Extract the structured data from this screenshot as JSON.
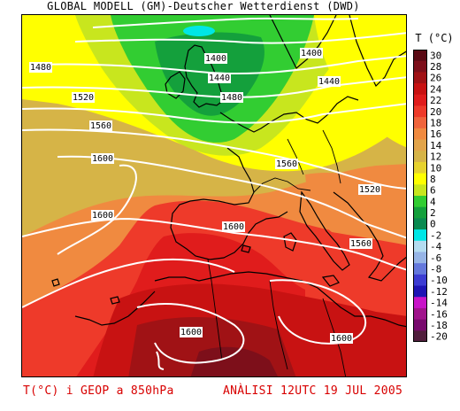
{
  "header": {
    "title": "GLOBAL MODELL (GM)-Deutscher Wetterdienst (DWD)"
  },
  "legend": {
    "title": "T (°C)",
    "stops": [
      {
        "value": "30",
        "color": "#5a0a14"
      },
      {
        "value": "28",
        "color": "#7d0f1a"
      },
      {
        "value": "26",
        "color": "#a01215"
      },
      {
        "value": "24",
        "color": "#c81212"
      },
      {
        "value": "22",
        "color": "#e01c1c"
      },
      {
        "value": "20",
        "color": "#ee3a2a"
      },
      {
        "value": "18",
        "color": "#f0643c"
      },
      {
        "value": "16",
        "color": "#f08a40"
      },
      {
        "value": "14",
        "color": "#e2a44a"
      },
      {
        "value": "12",
        "color": "#d6b447"
      },
      {
        "value": "10",
        "color": "#e6d22e"
      },
      {
        "value": "8",
        "color": "#ffff00"
      },
      {
        "value": "6",
        "color": "#c8e61e"
      },
      {
        "value": "4",
        "color": "#32cd32"
      },
      {
        "value": "2",
        "color": "#14a03c"
      },
      {
        "value": "0",
        "color": "#0a8a50"
      },
      {
        "value": "-2",
        "color": "#00e6e6"
      },
      {
        "value": "-4",
        "color": "#b4dcf0"
      },
      {
        "value": "-6",
        "color": "#96b4e6"
      },
      {
        "value": "-8",
        "color": "#6478dc"
      },
      {
        "value": "-10",
        "color": "#3c3cd2"
      },
      {
        "value": "-12",
        "color": "#1e14b4"
      },
      {
        "value": "-14",
        "color": "#c814c8"
      },
      {
        "value": "-16",
        "color": "#a0148c"
      },
      {
        "value": "-18",
        "color": "#780a6e"
      },
      {
        "value": "-20",
        "color": "#501e3c"
      }
    ]
  },
  "isohypses": [
    {
      "label": "1400"
    },
    {
      "label": "1400"
    },
    {
      "label": "1440"
    },
    {
      "label": "1440"
    },
    {
      "label": "1480"
    },
    {
      "label": "1480"
    },
    {
      "label": "1520"
    },
    {
      "label": "1520"
    },
    {
      "label": "1560"
    },
    {
      "label": "1560"
    },
    {
      "label": "1560"
    },
    {
      "label": "1600"
    },
    {
      "label": "1600"
    },
    {
      "label": "1600"
    },
    {
      "label": "1600"
    },
    {
      "label": "1600"
    }
  ],
  "footer": {
    "left": "T(°C) i GEOP a 850hPa",
    "right": "ANÀLISI 12UTC 19 JUL 2005"
  }
}
